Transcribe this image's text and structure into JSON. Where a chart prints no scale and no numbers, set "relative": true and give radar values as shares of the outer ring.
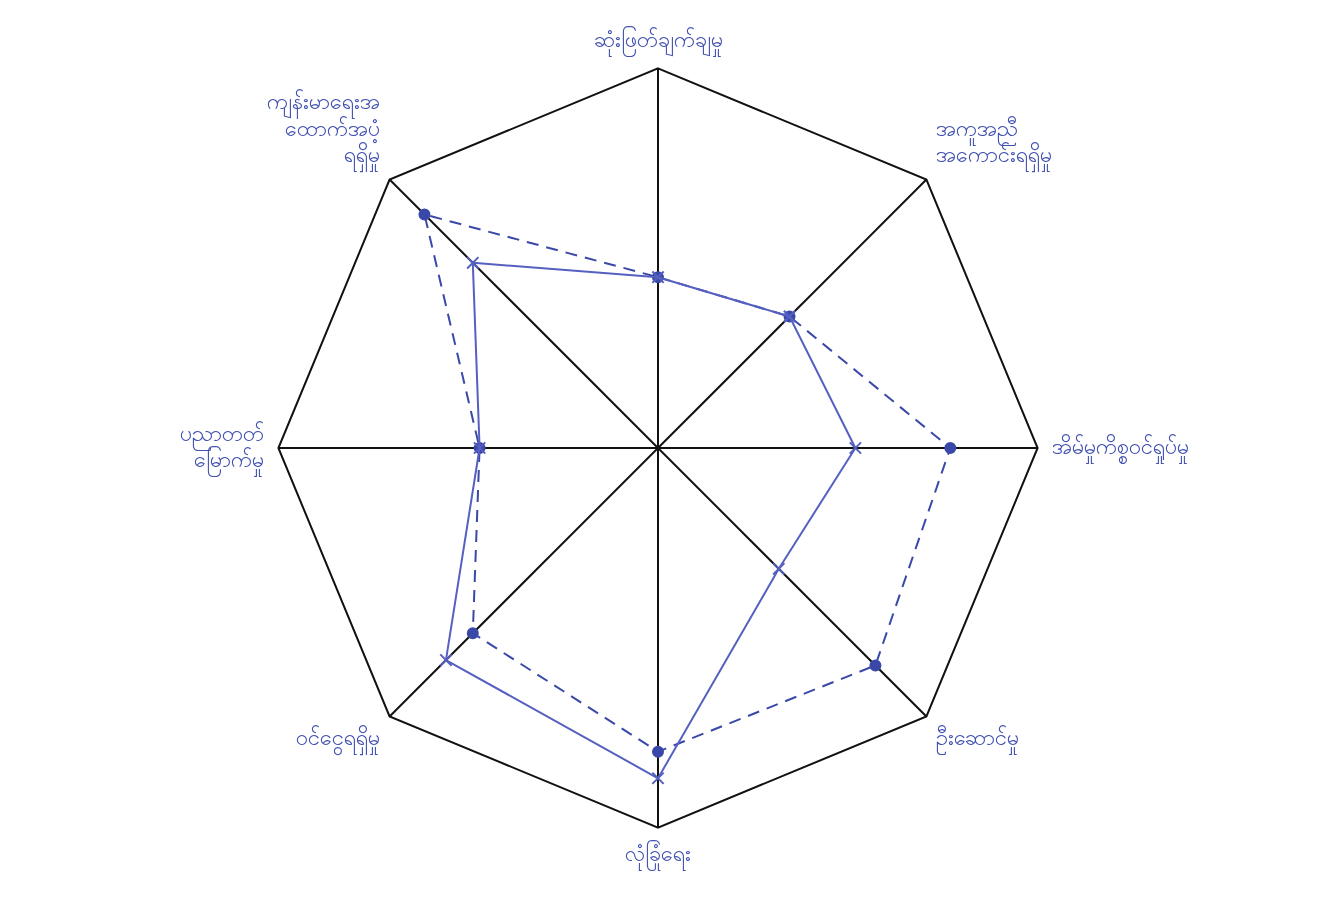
{
  "chart_data": {
    "type": "radar",
    "relative": true,
    "categories": [
      "ဆုံးဖြတ်ချက်ချမှု",
      "အကူအညီ အကောင်းရရှိမှု",
      "အိမ်မှုကိစ္စဝင်ရှုပ်မှု",
      "ဦးဆောင်မှု",
      "လုံခြုံရေး",
      "ဝင်ငွေရရှိမှု",
      "ပညာတတ် မြောက်မှု",
      "ကျန်းမာရေးအ ထောက်အပံ့ ရရှိမှု"
    ],
    "series": [
      {
        "color": "#5560c0",
        "marker": "cross",
        "line_style": "solid",
        "values": [
          0.45,
          0.49,
          0.52,
          0.45,
          0.87,
          0.79,
          0.47,
          0.69
        ]
      },
      {
        "color": "#3a48a8",
        "marker": "circle",
        "line_style": "dashed",
        "values": [
          0.45,
          0.49,
          0.77,
          0.81,
          0.8,
          0.69,
          0.47,
          0.87
        ]
      }
    ],
    "legend": false
  }
}
